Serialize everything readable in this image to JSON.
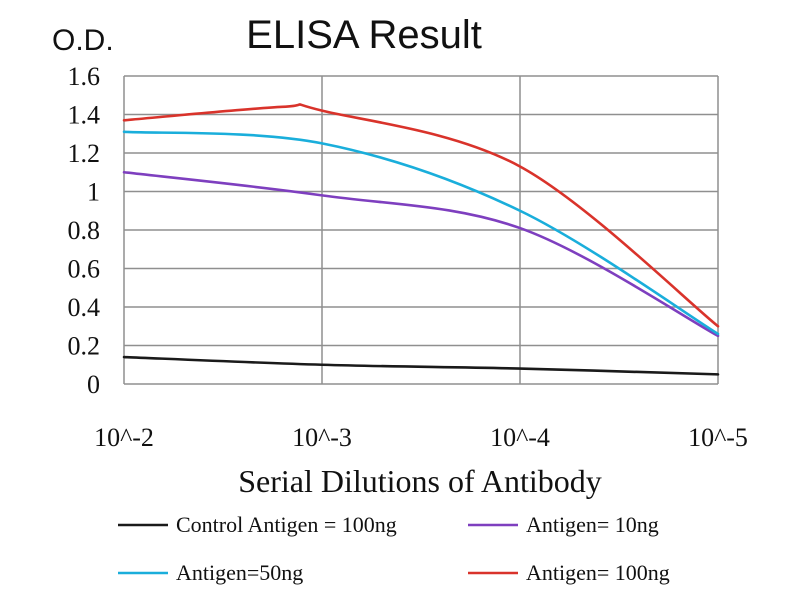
{
  "chart_data": {
    "type": "line",
    "title": "ELISA Result",
    "ylabel": "O.D.",
    "xlabel": "Serial Dilutions of Antibody",
    "x_categories": [
      "10^-2",
      "10^-3",
      "10^-4",
      "10^-5"
    ],
    "ylim": [
      0,
      1.6
    ],
    "yticks": [
      "0",
      "0.2",
      "0.4",
      "0.6",
      "0.8",
      "1",
      "1.2",
      "1.4",
      "1.6"
    ],
    "grid": true,
    "legend_position": "bottom",
    "series": [
      {
        "name": "Control Antigen = 100ng",
        "color": "#1a1a1a",
        "points": [
          [
            0,
            0.14
          ],
          [
            1,
            0.1
          ],
          [
            2,
            0.08
          ],
          [
            3,
            0.05
          ]
        ]
      },
      {
        "name": "Antigen= 10ng",
        "color": "#7e3fbf",
        "points": [
          [
            0,
            1.1
          ],
          [
            1,
            0.98
          ],
          [
            2,
            0.81
          ],
          [
            3,
            0.25
          ]
        ]
      },
      {
        "name": "Antigen=50ng",
        "color": "#1aaedb",
        "points": [
          [
            0,
            1.31
          ],
          [
            1,
            1.25
          ],
          [
            2,
            0.9
          ],
          [
            3,
            0.26
          ]
        ]
      },
      {
        "name": "Antigen= 100ng",
        "color": "#d9332b",
        "points": [
          [
            0,
            1.37
          ],
          [
            0.8,
            1.44
          ],
          [
            1,
            1.42
          ],
          [
            2,
            1.13
          ],
          [
            3,
            0.3
          ]
        ]
      }
    ]
  }
}
